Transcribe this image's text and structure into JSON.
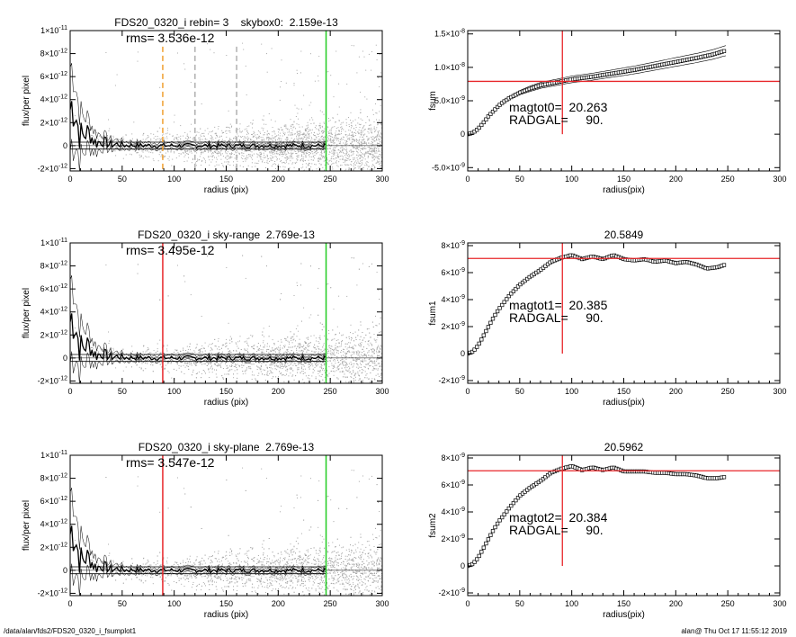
{
  "footer": {
    "left": "/data/alan/fds2/FDS20_0320_i_fsumplot1",
    "right": "alan@  Thu Oct 17 11:55:12 2019"
  },
  "colors": {
    "scatter": "#a8a8a8",
    "profile": "#000000",
    "redline": "#e8262a",
    "greenline": "#22cc22",
    "orange": "#f0a030",
    "gray_dash": "#b0b0b0"
  },
  "chart_data": [
    {
      "id": "profile-1",
      "type": "scatter",
      "title": "FDS20_0320_i rebin= 3    skybox0:  2.159e-13",
      "annotation": "rms= 3.536e-12",
      "xlabel": "radius (pix)",
      "ylabel": "flux/per pixel",
      "xlim": [
        0,
        300
      ],
      "ylim": [
        -2.2e-12,
        1e-11
      ],
      "x_ticks": [
        "0",
        "50",
        "100",
        "150",
        "200",
        "250",
        "300"
      ],
      "y_ticks": [
        {
          "v": -2e-12,
          "m": "-2×10",
          "e": "-12"
        },
        {
          "v": 0,
          "m": "0",
          "e": ""
        },
        {
          "v": 2e-12,
          "m": "2×10",
          "e": "-12"
        },
        {
          "v": 4e-12,
          "m": "4×10",
          "e": "-12"
        },
        {
          "v": 6e-12,
          "m": "6×10",
          "e": "-12"
        },
        {
          "v": 8e-12,
          "m": "8×10",
          "e": "-12"
        },
        {
          "v": 1e-11,
          "m": "1×10",
          "e": "-11"
        }
      ],
      "vlines": [
        {
          "x": 89,
          "color": "orange",
          "dash": true
        },
        {
          "x": 120,
          "color": "gray_dash",
          "dash": true
        },
        {
          "x": 160,
          "color": "gray_dash",
          "dash": true
        },
        {
          "x": 246,
          "color": "greenline",
          "dash": false
        }
      ],
      "hlines": [
        3e-13,
        -3e-13
      ]
    },
    {
      "id": "fsum-1",
      "type": "scatter",
      "title": "",
      "annotations": [
        "magtot0=  20.263",
        "RADGAL=     90."
      ],
      "xlabel": "radius(pix)",
      "ylabel": "fsum",
      "xlim": [
        0,
        300
      ],
      "ylim": [
        -5.5e-09,
        1.55e-08
      ],
      "x_ticks": [
        "0",
        "50",
        "100",
        "150",
        "200",
        "250",
        "300"
      ],
      "y_ticks": [
        {
          "v": -5e-09,
          "m": "-5.0×10",
          "e": "-9"
        },
        {
          "v": 0,
          "m": "0",
          "e": ""
        },
        {
          "v": 5e-09,
          "m": "5.0×10",
          "e": "-9"
        },
        {
          "v": 1e-08,
          "m": "1.0×10",
          "e": "-8"
        },
        {
          "v": 1.5e-08,
          "m": "1.5×10",
          "e": "-8"
        }
      ],
      "cross": {
        "x": 91,
        "y": 7.9e-09
      },
      "curve": [
        [
          0,
          0
        ],
        [
          5,
          2e-10
        ],
        [
          10,
          8e-10
        ],
        [
          15,
          1.7e-09
        ],
        [
          20,
          2.7e-09
        ],
        [
          25,
          3.5e-09
        ],
        [
          30,
          4.3e-09
        ],
        [
          35,
          4.9e-09
        ],
        [
          40,
          5.4e-09
        ],
        [
          50,
          6.2e-09
        ],
        [
          60,
          6.8e-09
        ],
        [
          70,
          7.3e-09
        ],
        [
          80,
          7.6e-09
        ],
        [
          90,
          7.9e-09
        ],
        [
          100,
          8.2e-09
        ],
        [
          120,
          8.6e-09
        ],
        [
          140,
          9.1e-09
        ],
        [
          160,
          9.6e-09
        ],
        [
          180,
          1.02e-08
        ],
        [
          200,
          1.08e-08
        ],
        [
          220,
          1.14e-08
        ],
        [
          235,
          1.19e-08
        ],
        [
          248,
          1.25e-08
        ]
      ],
      "band": 0.06
    },
    {
      "id": "profile-2",
      "type": "scatter",
      "title": "FDS20_0320_i sky-range  2.769e-13",
      "annotation": "rms= 3.495e-12",
      "xlabel": "radius (pix)",
      "ylabel": "flux/per pixel",
      "xlim": [
        0,
        300
      ],
      "ylim": [
        -2.2e-12,
        1e-11
      ],
      "x_ticks": [
        "0",
        "50",
        "100",
        "150",
        "200",
        "250",
        "300"
      ],
      "y_ticks": [
        {
          "v": -2e-12,
          "m": "-2×10",
          "e": "-12"
        },
        {
          "v": 0,
          "m": "0",
          "e": ""
        },
        {
          "v": 2e-12,
          "m": "2×10",
          "e": "-12"
        },
        {
          "v": 4e-12,
          "m": "4×10",
          "e": "-12"
        },
        {
          "v": 6e-12,
          "m": "6×10",
          "e": "-12"
        },
        {
          "v": 8e-12,
          "m": "8×10",
          "e": "-12"
        },
        {
          "v": 1e-11,
          "m": "1×10",
          "e": "-11"
        }
      ],
      "vlines": [
        {
          "x": 89,
          "color": "redline",
          "dash": false
        },
        {
          "x": 246,
          "color": "greenline",
          "dash": false
        }
      ],
      "hlines": [
        3e-13,
        -3e-13
      ]
    },
    {
      "id": "fsum-2",
      "type": "scatter",
      "title": "20.5849",
      "annotations": [
        "magtot1=  20.385",
        "RADGAL=     90."
      ],
      "xlabel": "radius(pix)",
      "ylabel": "fsum1",
      "xlim": [
        0,
        300
      ],
      "ylim": [
        -2.2e-09,
        8.2e-09
      ],
      "x_ticks": [
        "0",
        "50",
        "100",
        "150",
        "200",
        "250",
        "300"
      ],
      "y_ticks": [
        {
          "v": -2e-09,
          "m": "-2×10",
          "e": "-9"
        },
        {
          "v": 0,
          "m": "0",
          "e": ""
        },
        {
          "v": 2e-09,
          "m": "2×10",
          "e": "-9"
        },
        {
          "v": 4e-09,
          "m": "4×10",
          "e": "-9"
        },
        {
          "v": 6e-09,
          "m": "6×10",
          "e": "-9"
        },
        {
          "v": 8e-09,
          "m": "8×10",
          "e": "-9"
        }
      ],
      "cross": {
        "x": 91,
        "y": 7.05e-09
      },
      "curve": [
        [
          0,
          0
        ],
        [
          5,
          1.5e-10
        ],
        [
          10,
          6e-10
        ],
        [
          15,
          1.3e-09
        ],
        [
          20,
          2e-09
        ],
        [
          25,
          2.7e-09
        ],
        [
          30,
          3.3e-09
        ],
        [
          35,
          3.8e-09
        ],
        [
          40,
          4.3e-09
        ],
        [
          50,
          5.1e-09
        ],
        [
          60,
          5.7e-09
        ],
        [
          70,
          6.2e-09
        ],
        [
          80,
          6.8e-09
        ],
        [
          90,
          7.1e-09
        ],
        [
          100,
          7.3e-09
        ],
        [
          110,
          7e-09
        ],
        [
          120,
          7.2e-09
        ],
        [
          130,
          7e-09
        ],
        [
          140,
          7.3e-09
        ],
        [
          150,
          7e-09
        ],
        [
          160,
          6.9e-09
        ],
        [
          170,
          7e-09
        ],
        [
          180,
          6.8e-09
        ],
        [
          190,
          6.9e-09
        ],
        [
          200,
          6.7e-09
        ],
        [
          210,
          6.8e-09
        ],
        [
          220,
          6.6e-09
        ],
        [
          230,
          6.3e-09
        ],
        [
          240,
          6.4e-09
        ],
        [
          248,
          6.6e-09
        ]
      ],
      "band": 0
    },
    {
      "id": "profile-3",
      "type": "scatter",
      "title": "FDS20_0320_i sky-plane  2.769e-13",
      "annotation": "rms= 3.547e-12",
      "xlabel": "radius (pix)",
      "ylabel": "flux/per pixel",
      "xlim": [
        0,
        300
      ],
      "ylim": [
        -2.2e-12,
        1e-11
      ],
      "x_ticks": [
        "0",
        "50",
        "100",
        "150",
        "200",
        "250",
        "300"
      ],
      "y_ticks": [
        {
          "v": -2e-12,
          "m": "-2×10",
          "e": "-12"
        },
        {
          "v": 0,
          "m": "0",
          "e": ""
        },
        {
          "v": 2e-12,
          "m": "2×10",
          "e": "-12"
        },
        {
          "v": 4e-12,
          "m": "4×10",
          "e": "-12"
        },
        {
          "v": 6e-12,
          "m": "6×10",
          "e": "-12"
        },
        {
          "v": 8e-12,
          "m": "8×10",
          "e": "-12"
        },
        {
          "v": 1e-11,
          "m": "1×10",
          "e": "-11"
        }
      ],
      "vlines": [
        {
          "x": 89,
          "color": "redline",
          "dash": false
        },
        {
          "x": 246,
          "color": "greenline",
          "dash": false
        }
      ],
      "hlines": [
        3e-13,
        -3e-13
      ]
    },
    {
      "id": "fsum-3",
      "type": "scatter",
      "title": "20.5962",
      "annotations": [
        "magtot2=  20.384",
        "RADGAL=     90."
      ],
      "xlabel": "radius(pix)",
      "ylabel": "fsum2",
      "xlim": [
        0,
        300
      ],
      "ylim": [
        -2.2e-09,
        8.2e-09
      ],
      "x_ticks": [
        "0",
        "50",
        "100",
        "150",
        "200",
        "250",
        "300"
      ],
      "y_ticks": [
        {
          "v": -2e-09,
          "m": "-2×10",
          "e": "-9"
        },
        {
          "v": 0,
          "m": "0",
          "e": ""
        },
        {
          "v": 2e-09,
          "m": "2×10",
          "e": "-9"
        },
        {
          "v": 4e-09,
          "m": "4×10",
          "e": "-9"
        },
        {
          "v": 6e-09,
          "m": "6×10",
          "e": "-9"
        },
        {
          "v": 8e-09,
          "m": "8×10",
          "e": "-9"
        }
      ],
      "cross": {
        "x": 91,
        "y": 7.05e-09
      },
      "curve": [
        [
          0,
          0
        ],
        [
          5,
          1.5e-10
        ],
        [
          10,
          6e-10
        ],
        [
          15,
          1.3e-09
        ],
        [
          20,
          2e-09
        ],
        [
          25,
          2.7e-09
        ],
        [
          30,
          3.3e-09
        ],
        [
          35,
          3.8e-09
        ],
        [
          40,
          4.3e-09
        ],
        [
          50,
          5.2e-09
        ],
        [
          60,
          5.8e-09
        ],
        [
          70,
          6.3e-09
        ],
        [
          80,
          6.9e-09
        ],
        [
          90,
          7.2e-09
        ],
        [
          100,
          7.4e-09
        ],
        [
          110,
          7.1e-09
        ],
        [
          120,
          7.3e-09
        ],
        [
          130,
          7.1e-09
        ],
        [
          140,
          7.3e-09
        ],
        [
          150,
          7e-09
        ],
        [
          160,
          7e-09
        ],
        [
          170,
          7e-09
        ],
        [
          180,
          6.9e-09
        ],
        [
          190,
          6.9e-09
        ],
        [
          200,
          6.8e-09
        ],
        [
          210,
          6.8e-09
        ],
        [
          220,
          6.7e-09
        ],
        [
          230,
          6.5e-09
        ],
        [
          240,
          6.5e-09
        ],
        [
          248,
          6.6e-09
        ]
      ],
      "band": 0
    }
  ]
}
